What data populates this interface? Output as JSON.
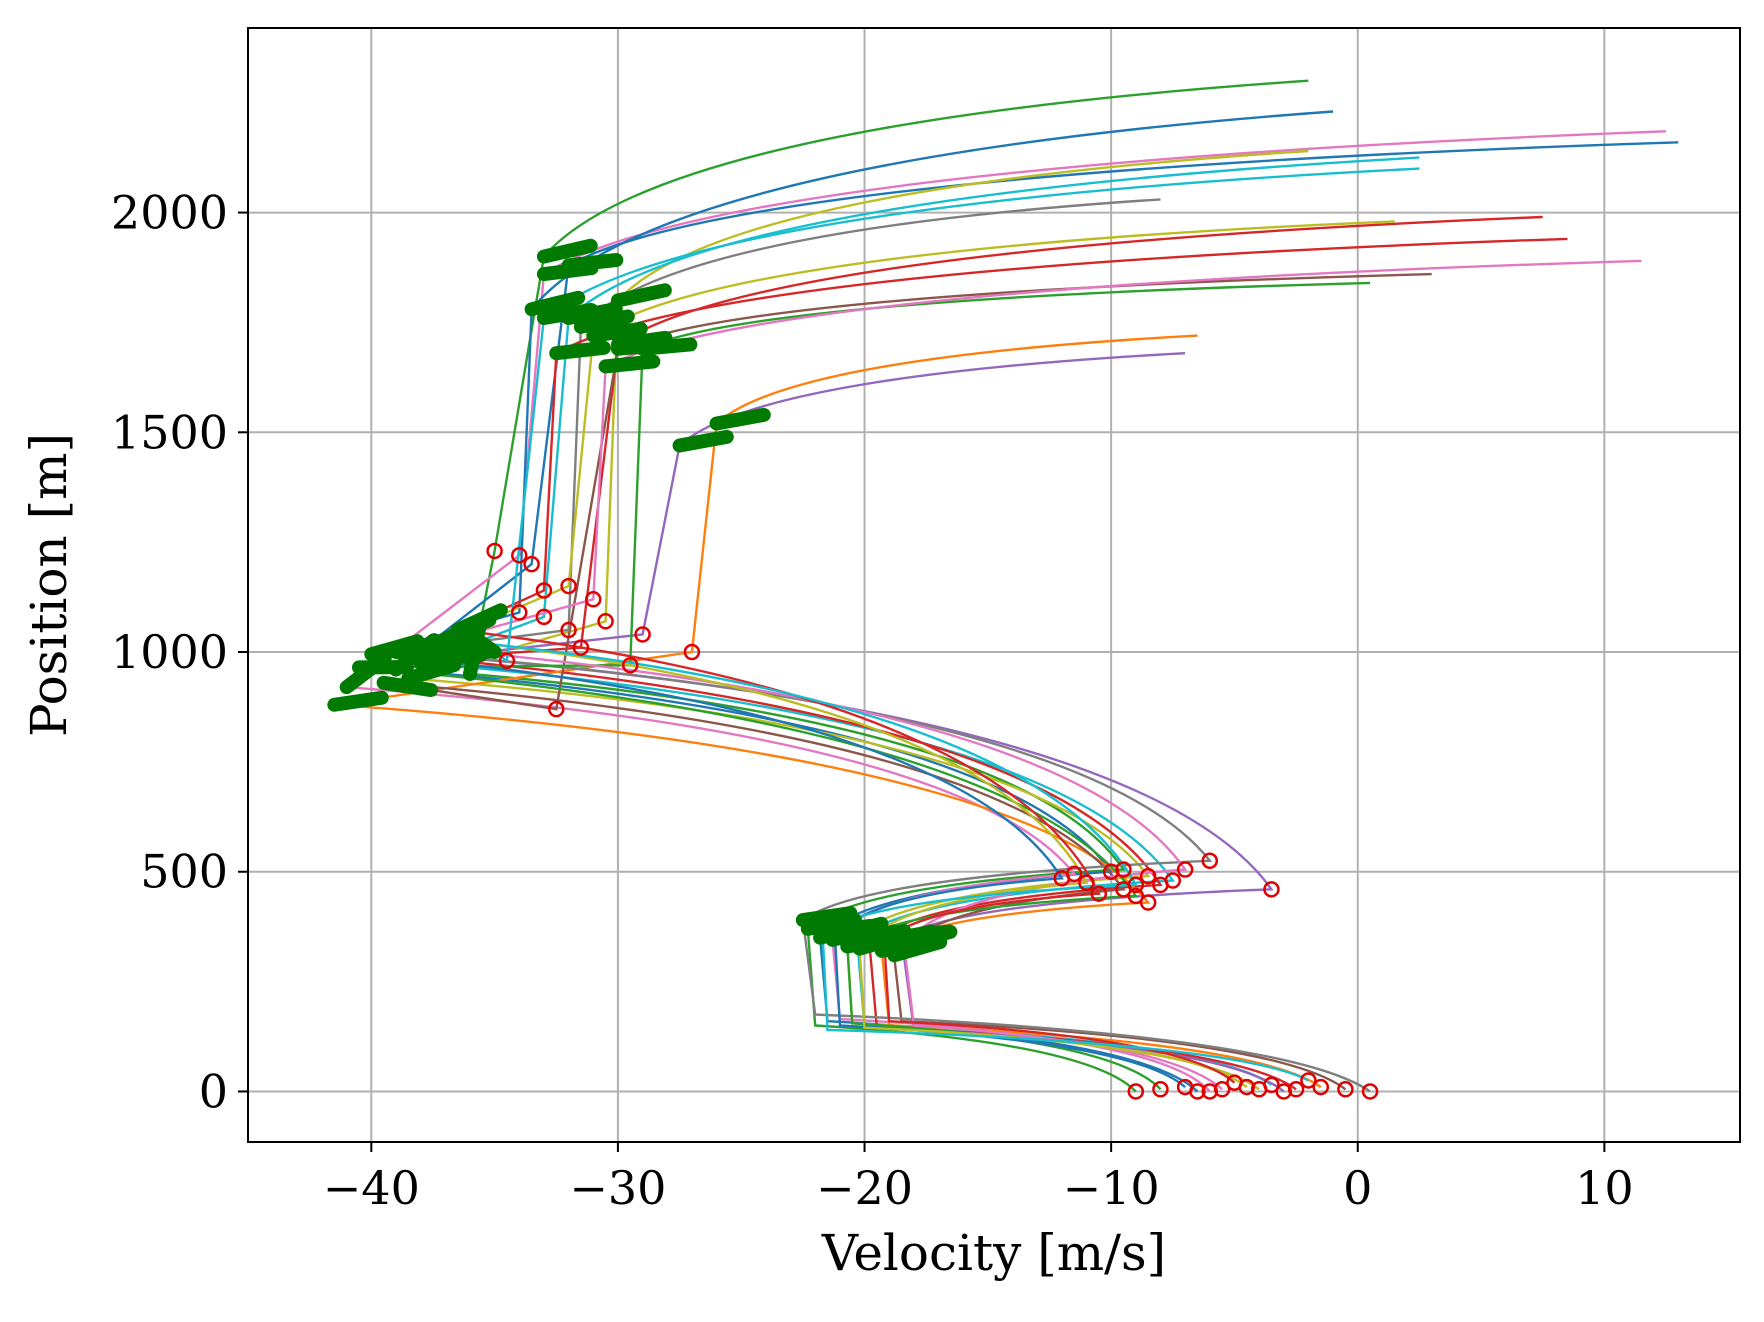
{
  "chart_data": {
    "type": "line",
    "title": "",
    "xlabel": "Velocity [m/s]",
    "ylabel": "Position [m]",
    "xlim": [
      -45,
      15.5
    ],
    "ylim": [
      -115,
      2420
    ],
    "xticks": [
      -40,
      -30,
      -20,
      -10,
      0,
      10
    ],
    "xtick_labels": [
      "−40",
      "−30",
      "−20",
      "−10",
      "0",
      "10"
    ],
    "yticks": [
      0,
      500,
      1000,
      1500,
      2000
    ],
    "ytick_labels": [
      "0",
      "500",
      "1000",
      "1500",
      "2000"
    ],
    "grid": true,
    "legend": "none",
    "colors": {
      "palette": [
        "#1f77b4",
        "#ff7f0e",
        "#2ca02c",
        "#d62728",
        "#9467bd",
        "#8c564b",
        "#e377c2",
        "#7f7f7f",
        "#bcbd22",
        "#17becf"
      ],
      "start_marker": "#e00000",
      "coast_marker": "#007a00",
      "grid": "#b0b0b0",
      "axes": "#000000"
    },
    "markers": {
      "red_circles": "hollow circle at the start of each burn segment",
      "green_thick": "thick green segments marking coasting phases"
    },
    "series": [
      {
        "color": "#2ca02c",
        "points": [
          [
            -9.0,
            0
          ],
          [
            -22.0,
            150
          ],
          [
            -22.3,
            370
          ],
          [
            -9.5,
            505
          ],
          [
            -36.0,
            950
          ],
          [
            -35.0,
            1230
          ],
          [
            -33.0,
            1900
          ],
          [
            -2.0,
            2300
          ]
        ]
      },
      {
        "color": "#1f77b4",
        "points": [
          [
            -6.5,
            0
          ],
          [
            -21.5,
            160
          ],
          [
            -21.8,
            350
          ],
          [
            -10.0,
            500
          ],
          [
            -39.0,
            960
          ],
          [
            -33.5,
            1200
          ],
          [
            -32.0,
            1880
          ],
          [
            13.0,
            2160
          ]
        ]
      },
      {
        "color": "#e377c2",
        "points": [
          [
            -5.5,
            5
          ],
          [
            -21.0,
            165
          ],
          [
            -21.3,
            345
          ],
          [
            -11.5,
            495
          ],
          [
            -41.0,
            920
          ],
          [
            -34.0,
            1220
          ],
          [
            -33.0,
            1860
          ],
          [
            12.5,
            2185
          ]
        ]
      },
      {
        "color": "#bcbd22",
        "points": [
          [
            -4.5,
            10
          ],
          [
            -20.5,
            155
          ],
          [
            -20.7,
            340
          ],
          [
            -8.5,
            490
          ],
          [
            -38.5,
            940
          ],
          [
            -30.5,
            1070
          ],
          [
            -30.0,
            1800
          ],
          [
            -2.0,
            2140
          ]
        ]
      },
      {
        "color": "#17becf",
        "points": [
          [
            -3.5,
            15
          ],
          [
            -20.0,
            150
          ],
          [
            -20.3,
            345
          ],
          [
            -7.5,
            480
          ],
          [
            -38.0,
            975
          ],
          [
            -33.0,
            1080
          ],
          [
            -32.0,
            1760
          ],
          [
            2.5,
            2125
          ]
        ]
      },
      {
        "color": "#d62728",
        "points": [
          [
            -2.5,
            5
          ],
          [
            -19.5,
            145
          ],
          [
            -19.8,
            335
          ],
          [
            -8.0,
            470
          ],
          [
            -37.5,
            985
          ],
          [
            -31.5,
            1010
          ],
          [
            -30.0,
            1700
          ],
          [
            7.5,
            1990
          ]
        ]
      },
      {
        "color": "#9467bd",
        "points": [
          [
            -3.0,
            0
          ],
          [
            -18.0,
            140
          ],
          [
            -18.5,
            350
          ],
          [
            -3.5,
            460
          ],
          [
            -37.0,
            990
          ],
          [
            -29.0,
            1040
          ],
          [
            -27.5,
            1470
          ],
          [
            -7.0,
            1680
          ]
        ]
      },
      {
        "color": "#ff7f0e",
        "points": [
          [
            -1.5,
            10
          ],
          [
            -19.0,
            150
          ],
          [
            -19.3,
            320
          ],
          [
            -8.5,
            430
          ],
          [
            -41.5,
            880
          ],
          [
            -27.0,
            1000
          ],
          [
            -26.0,
            1520
          ],
          [
            -6.5,
            1720
          ]
        ]
      },
      {
        "color": "#8c564b",
        "points": [
          [
            -0.5,
            5
          ],
          [
            -18.5,
            160
          ],
          [
            -18.8,
            310
          ],
          [
            -9.5,
            460
          ],
          [
            -39.5,
            930
          ],
          [
            -32.5,
            870
          ],
          [
            -30.0,
            1690
          ],
          [
            3.0,
            1860
          ]
        ]
      },
      {
        "color": "#7f7f7f",
        "points": [
          [
            0.5,
            0
          ],
          [
            -22.0,
            175
          ],
          [
            -22.5,
            390
          ],
          [
            -6.0,
            525
          ],
          [
            -39.0,
            1000
          ],
          [
            -32.0,
            1050
          ],
          [
            -31.5,
            1740
          ],
          [
            -8.0,
            2030
          ]
        ]
      },
      {
        "color": "#2ca02c",
        "points": [
          [
            -8.0,
            5
          ],
          [
            -20.5,
            155
          ],
          [
            -20.7,
            330
          ],
          [
            -9.0,
            445
          ],
          [
            -40.5,
            965
          ],
          [
            -29.5,
            970
          ],
          [
            -29.0,
            1690
          ],
          [
            0.5,
            1840
          ]
        ]
      },
      {
        "color": "#1f77b4",
        "points": [
          [
            -7.0,
            10
          ],
          [
            -21.0,
            150
          ],
          [
            -21.2,
            355
          ],
          [
            -12.0,
            485
          ],
          [
            -40.0,
            995
          ],
          [
            -34.0,
            1090
          ],
          [
            -33.5,
            1780
          ],
          [
            -1.0,
            2230
          ]
        ]
      },
      {
        "color": "#e377c2",
        "points": [
          [
            -6.0,
            0
          ],
          [
            -18.0,
            150
          ],
          [
            -18.4,
            335
          ],
          [
            -7.0,
            505
          ],
          [
            -38.0,
            1010
          ],
          [
            -31.0,
            1120
          ],
          [
            -30.5,
            1650
          ],
          [
            11.5,
            1890
          ]
        ]
      },
      {
        "color": "#bcbd22",
        "points": [
          [
            -4.0,
            5
          ],
          [
            -20.0,
            145
          ],
          [
            -20.2,
            325
          ],
          [
            -11.0,
            475
          ],
          [
            -37.0,
            1030
          ],
          [
            -32.0,
            1150
          ],
          [
            -31.0,
            1720
          ],
          [
            1.5,
            1980
          ]
        ]
      },
      {
        "color": "#d62728",
        "points": [
          [
            -5.0,
            20
          ],
          [
            -19.0,
            160
          ],
          [
            -19.2,
            340
          ],
          [
            -10.5,
            450
          ],
          [
            -36.5,
            1050
          ],
          [
            -33.0,
            1140
          ],
          [
            -32.5,
            1680
          ],
          [
            8.5,
            1940
          ]
        ]
      },
      {
        "color": "#17becf",
        "points": [
          [
            -2.0,
            25
          ],
          [
            -21.5,
            140
          ],
          [
            -21.7,
            360
          ],
          [
            -9.0,
            470
          ],
          [
            -35.5,
            1020
          ],
          [
            -34.5,
            980
          ],
          [
            -33.0,
            1760
          ],
          [
            2.5,
            2100
          ]
        ]
      }
    ]
  }
}
